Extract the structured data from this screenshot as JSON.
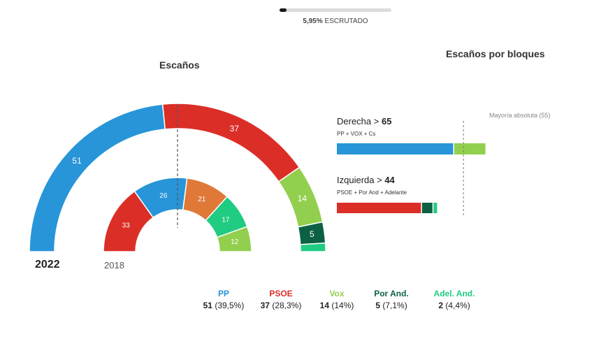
{
  "progress": {
    "percent_label": "5,95%",
    "status_label": "ESCRUTADO",
    "fraction": 0.0595
  },
  "titles": {
    "seats": "Escaños",
    "blocks": "Escaños por bloques"
  },
  "years": {
    "current": "2022",
    "previous": "2018"
  },
  "colors": {
    "PP": "#2795d8",
    "PSOE": "#db2e27",
    "Vox": "#93cf4e",
    "PorAnd": "#0c6144",
    "AdelAnd": "#1fcc81",
    "Cs": "#e07838"
  },
  "blocks": {
    "majority_label": "Mayoría absoluta (55)",
    "majority": 55,
    "right": {
      "name": "Derecha",
      "total": "65",
      "parties": "PP + VOX + Cs"
    },
    "left": {
      "name": "Izquierda",
      "total": "44",
      "parties": "PSOE + Por And + Adelante"
    }
  },
  "legend": [
    {
      "name": "PP",
      "seats": "51",
      "pct": "(39,5%)",
      "color": "#2795d8"
    },
    {
      "name": "PSOE",
      "seats": "37",
      "pct": "(28,3%)",
      "color": "#db2e27"
    },
    {
      "name": "Vox",
      "seats": "14",
      "pct": "(14%)",
      "color": "#93cf4e"
    },
    {
      "name": "Por And.",
      "seats": "5",
      "pct": "(7,1%)",
      "color": "#0c6144"
    },
    {
      "name": "Adel. And.",
      "seats": "2",
      "pct": "(4,4%)",
      "color": "#1fcc81"
    }
  ],
  "chart_data": [
    {
      "type": "parliament",
      "title": "Escaños",
      "label": "2022",
      "total": 109,
      "series": [
        {
          "name": "PP",
          "value": 51
        },
        {
          "name": "PSOE",
          "value": 37
        },
        {
          "name": "Vox",
          "value": 14
        },
        {
          "name": "Por And.",
          "value": 5
        },
        {
          "name": "Adel. And.",
          "value": 2
        }
      ]
    },
    {
      "type": "parliament",
      "label": "2018",
      "total": 109,
      "series": [
        {
          "name": "PSOE",
          "value": 33
        },
        {
          "name": "PP",
          "value": 26
        },
        {
          "name": "Cs",
          "value": 21
        },
        {
          "name": "Adelante",
          "value": 17
        },
        {
          "name": "Vox",
          "value": 12
        }
      ]
    },
    {
      "type": "bar",
      "title": "Escaños por bloques",
      "orientation": "horizontal-stacked",
      "xlim": [
        0,
        109
      ],
      "categories": [
        "Derecha",
        "Izquierda"
      ],
      "series": [
        {
          "block": "Derecha",
          "parts": [
            {
              "party": "PP",
              "value": 51
            },
            {
              "party": "Vox",
              "value": 14
            }
          ]
        },
        {
          "block": "Izquierda",
          "parts": [
            {
              "party": "PSOE",
              "value": 37
            },
            {
              "party": "Por And.",
              "value": 5
            },
            {
              "party": "Adel. And.",
              "value": 2
            }
          ]
        }
      ],
      "reference_line": 55
    }
  ]
}
